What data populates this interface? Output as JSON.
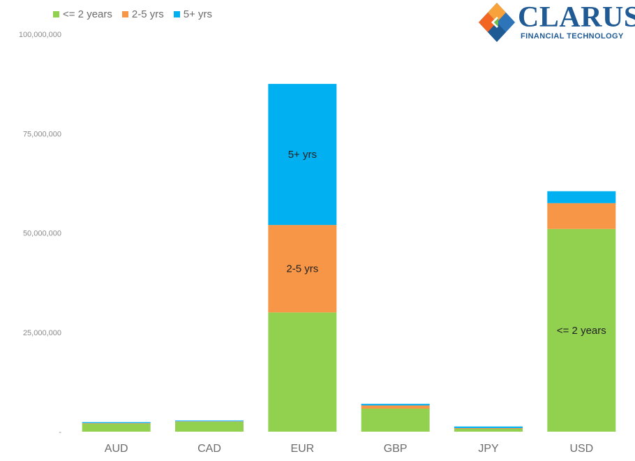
{
  "legend": {
    "items": [
      {
        "label": "<= 2 years",
        "color": "#92d050"
      },
      {
        "label": "2-5 yrs",
        "color": "#f79646"
      },
      {
        "label": "5+ yrs",
        "color": "#00b0f0"
      }
    ]
  },
  "logo": {
    "wordmark": "CLARUS",
    "tagline": "FINANCIAL TECHNOLOGY"
  },
  "chart_data": {
    "type": "bar",
    "stacked": true,
    "title": "",
    "xlabel": "",
    "ylabel": "",
    "ylim": [
      0,
      100000000
    ],
    "y_ticks": [
      "-",
      "25,000,000",
      "50,000,000",
      "75,000,000",
      "100,000,000"
    ],
    "y_tick_values": [
      0,
      25000000,
      50000000,
      75000000,
      100000000
    ],
    "grid": false,
    "legend_position": "top-left",
    "categories": [
      "AUD",
      "CAD",
      "EUR",
      "GBP",
      "JPY",
      "USD"
    ],
    "series": [
      {
        "name": "<= 2 years",
        "color": "#92d050",
        "values": [
          2000000,
          2500000,
          30000000,
          5800000,
          700000,
          51000000
        ]
      },
      {
        "name": "2-5 yrs",
        "color": "#f79646",
        "values": [
          150000,
          100000,
          22000000,
          800000,
          200000,
          6500000
        ]
      },
      {
        "name": "5+ yrs",
        "color": "#00b0f0",
        "values": [
          250000,
          200000,
          35500000,
          400000,
          400000,
          3000000
        ]
      }
    ],
    "annotations": [
      {
        "category": "EUR",
        "series": "5+ yrs",
        "text": "5+ yrs"
      },
      {
        "category": "EUR",
        "series": "2-5 yrs",
        "text": "2-5 yrs"
      },
      {
        "category": "USD",
        "series": "<= 2 years",
        "text": "<= 2 years"
      }
    ]
  }
}
